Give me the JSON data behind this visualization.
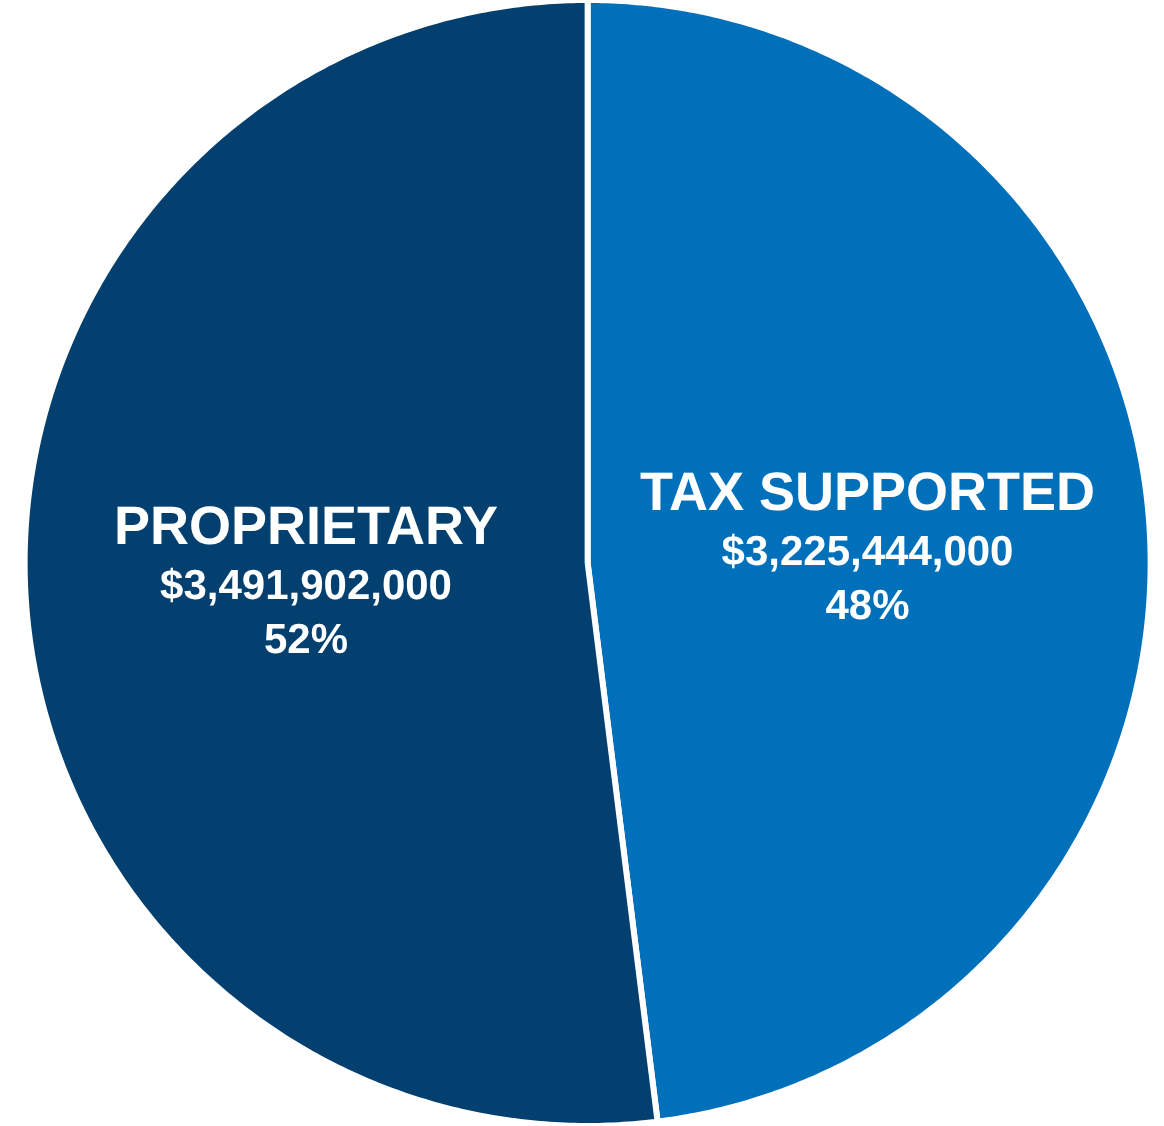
{
  "chart_data": {
    "type": "pie",
    "categories": [
      "TAX SUPPORTED",
      "PROPRIETARY"
    ],
    "values": [
      3225444000,
      3491902000
    ],
    "value_labels": [
      "$3,225,444,000\n48%",
      "$3,491,902,000\n52%"
    ],
    "colors": [
      "#0070bb",
      "#04406f"
    ],
    "legend": false
  }
}
